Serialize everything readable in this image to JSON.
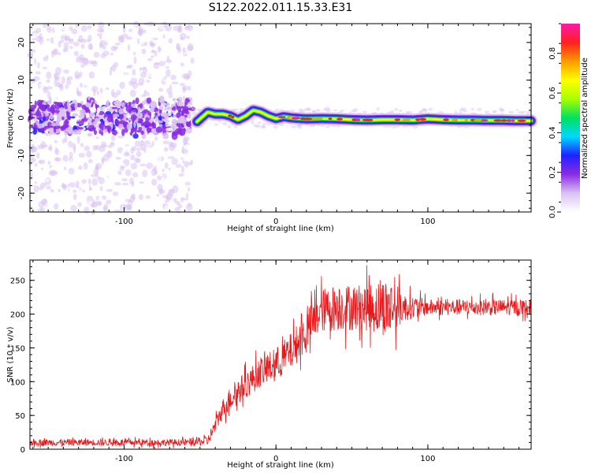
{
  "title": "S122.2022.011.15.33.E31",
  "chart_data": [
    {
      "type": "heatmap",
      "xlabel": "Height of straight line (km)",
      "ylabel": "Frequency (Hz)",
      "xlim": [
        -162,
        168
      ],
      "ylim": [
        -25,
        25
      ],
      "xticks": [
        -100,
        0,
        100
      ],
      "yticks": [
        -20,
        -10,
        0,
        10,
        20
      ],
      "colorbar": {
        "label": "Normalized spectral amplitude",
        "range": [
          0,
          0.95
        ],
        "ticks": [
          0.0,
          0.2,
          0.4,
          0.6,
          0.8
        ],
        "colormap": [
          "#ffffff",
          "#d9c2f2",
          "#8a2be2",
          "#2020ff",
          "#00d8ff",
          "#00e060",
          "#a8ff00",
          "#ffff00",
          "#ff9a00",
          "#ff1e1e",
          "#ff1aa8"
        ]
      },
      "noise_region": {
        "x_range": [
          -162,
          -55
        ],
        "amplitude_range": [
          0.02,
          0.25
        ]
      },
      "ridge": {
        "x": [
          -52,
          -45,
          -40,
          -35,
          -30,
          -25,
          -20,
          -15,
          -10,
          -5,
          0,
          5,
          10,
          20,
          30,
          40,
          50,
          60,
          70,
          80,
          90,
          100,
          110,
          120,
          130,
          140,
          150,
          160,
          168
        ],
        "y": [
          -1,
          1.5,
          1.0,
          1.0,
          0.5,
          -0.5,
          0.5,
          2.0,
          1.5,
          0.5,
          -0.2,
          0.3,
          0.0,
          -0.3,
          -0.2,
          -0.3,
          -0.5,
          -0.6,
          -0.5,
          -0.5,
          -0.6,
          -0.3,
          -0.5,
          -0.6,
          -0.6,
          -0.7,
          -0.7,
          -0.8,
          -0.8
        ],
        "peak_amplitude": 0.9
      }
    },
    {
      "type": "line",
      "xlabel": "Height of straight line (km)",
      "ylabel": "SNR (10 * v/v)",
      "xlim": [
        -162,
        168
      ],
      "ylim": [
        0,
        280
      ],
      "xticks": [
        -100,
        0,
        100
      ],
      "yticks": [
        0,
        50,
        100,
        150,
        200,
        250
      ],
      "color": "#e8191c",
      "trend": {
        "x": [
          -162,
          -100,
          -60,
          -45,
          -40,
          -35,
          -30,
          -20,
          -10,
          0,
          10,
          20,
          25,
          30,
          40,
          50,
          60,
          70,
          80,
          90,
          100,
          120,
          140,
          168
        ],
        "y": [
          10,
          10,
          10,
          12,
          35,
          60,
          75,
          95,
          115,
          125,
          145,
          175,
          190,
          205,
          210,
          210,
          210,
          210,
          210,
          210,
          210,
          210,
          210,
          210
        ]
      },
      "noise_amplitude": {
        "x": [
          -162,
          -60,
          -45,
          -30,
          0,
          20,
          40,
          60,
          75,
          85,
          100,
          168
        ],
        "y": [
          5,
          5,
          8,
          18,
          25,
          30,
          35,
          35,
          45,
          20,
          12,
          12
        ]
      }
    }
  ]
}
